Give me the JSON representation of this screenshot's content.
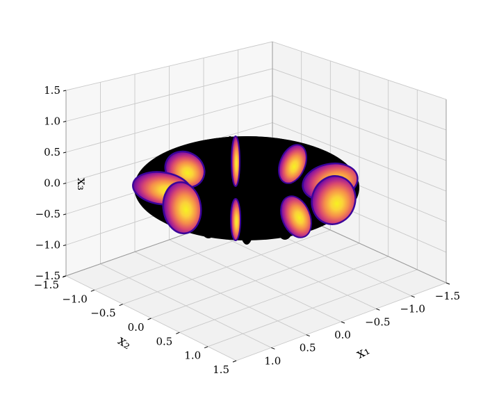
{
  "chart_data": {
    "type": "3d-surface",
    "title": "",
    "xlabel": "x₁",
    "ylabel": "x₂",
    "zlabel": "x₃",
    "x_ticks": [
      "−1.5",
      "−1.0",
      "−0.5",
      "0.0",
      "0.5",
      "1.0"
    ],
    "y_ticks": [
      "−1.5",
      "−1.0",
      "−0.5",
      "0.0",
      "0.5",
      "1.0",
      "1.5"
    ],
    "z_ticks": [
      "−1.5",
      "−1.0",
      "−0.5",
      "0.0",
      "0.5",
      "1.0",
      "1.5"
    ],
    "xlim": [
      -1.5,
      1.5
    ],
    "ylim": [
      -1.5,
      1.5
    ],
    "zlim": [
      -1.5,
      1.5
    ],
    "grid": true,
    "torus": {
      "major_radius": 1.0,
      "minor_radius": 0.3,
      "style": "wireframe"
    },
    "ellipsoids": [
      {
        "x": 1.0,
        "y": 0.0,
        "z": 0.0,
        "scale": 0.5
      },
      {
        "x": 0.71,
        "y": 0.71,
        "z": 0.0,
        "scale": 1.0
      },
      {
        "x": 0.0,
        "y": 1.0,
        "z": 0.0,
        "scale": 1.6
      },
      {
        "x": -0.71,
        "y": 0.71,
        "z": 0.0,
        "scale": 1.6
      },
      {
        "x": -1.0,
        "y": 0.0,
        "z": 0.0,
        "scale": 0.5
      },
      {
        "x": -0.71,
        "y": -0.71,
        "z": 0.0,
        "scale": 1.0
      },
      {
        "x": 0.0,
        "y": -1.0,
        "z": 0.0,
        "scale": 1.6
      },
      {
        "x": 0.71,
        "y": -0.71,
        "z": 0.0,
        "scale": 1.6
      }
    ],
    "colormap": "plasma"
  }
}
